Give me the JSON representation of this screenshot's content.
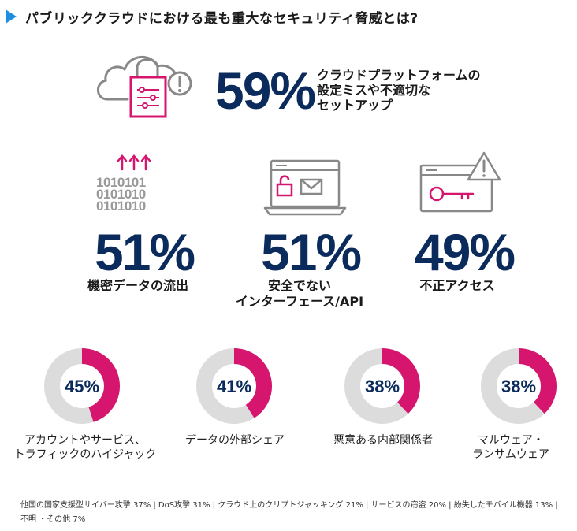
{
  "title": "パブリッククラウドにおける最も重大なセキュリティ脅威とは?",
  "hero": {
    "pct": "59%",
    "label_lines": [
      "クラウドプラットフォームの",
      "設定ミスや不適切な",
      "セットアップ"
    ]
  },
  "stats": [
    {
      "pct": "51%",
      "label_lines": [
        "機密データの流出"
      ]
    },
    {
      "pct": "51%",
      "label_lines": [
        "安全でない",
        "インターフェース/API"
      ]
    },
    {
      "pct": "49%",
      "label_lines": [
        "不正アクセス"
      ]
    }
  ],
  "binary_rows": [
    "1010101",
    "0101010",
    "0101010"
  ],
  "colors": {
    "navy": "#0a2b5c",
    "magenta": "#d6156e",
    "gray": "#dcdcdc",
    "accent": "#1e8fe0"
  },
  "chart_data": {
    "type": "pie",
    "title": "パブリッククラウドにおける最も重大なセキュリティ脅威とは?",
    "categories": [
      "アカウントやサービス、トラフィックのハイジャック",
      "データの外部シェア",
      "悪意ある内部関係者",
      "マルウェア・ランサムウェア"
    ],
    "values": [
      45,
      41,
      38,
      38
    ],
    "pct_labels": [
      "45%",
      "41%",
      "38%",
      "38%"
    ],
    "label_lines": [
      [
        "アカウントやサービス、",
        "トラフィックのハイジャック"
      ],
      [
        "データの外部シェア"
      ],
      [
        "悪意ある内部関係者"
      ],
      [
        "マルウェア・",
        "ランサムウェア"
      ]
    ]
  },
  "footnote_lines": [
    "他国の国家支援型サイバー攻撃 37% | DoS攻撃 31% | クラウド上のクリプトジャッキング 21% | サービスの窃盗 20% | 紛失したモバイル機器 13% |",
    "不明 ・その他 7%"
  ]
}
